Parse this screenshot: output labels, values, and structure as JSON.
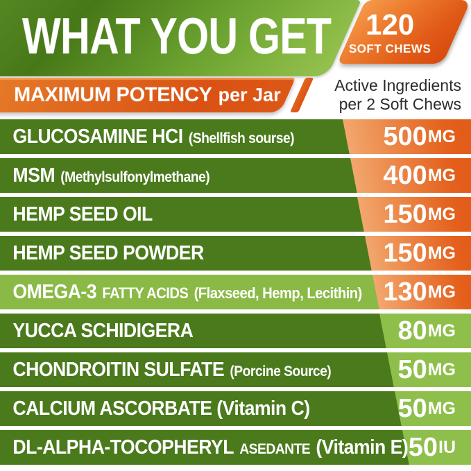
{
  "header": {
    "title": "WHAT YOU GET",
    "badge": {
      "count": "120",
      "label": "SOFT CHEWS"
    }
  },
  "subheader": {
    "potency_strong": "MAXIMUM POTENCY",
    "potency_rest": "per Jar",
    "active_line1": "Active Ingredients",
    "active_line2": "per 2 Soft Chews"
  },
  "ingredients": [
    {
      "segments": [
        {
          "text": "GLUCOSAMINE HCI",
          "size": "lg"
        },
        {
          "text": "(Shellfish sourse)",
          "size": "sm"
        }
      ],
      "amount": "500",
      "unit": "MG",
      "row_style": "dark",
      "amount_style": "orange"
    },
    {
      "segments": [
        {
          "text": "MSM",
          "size": "lg"
        },
        {
          "text": "(Methylsulfonylmethane)",
          "size": "sm"
        }
      ],
      "amount": "400",
      "unit": "MG",
      "row_style": "dark",
      "amount_style": "orange"
    },
    {
      "segments": [
        {
          "text": "HEMP SEED OIL",
          "size": "lg"
        }
      ],
      "amount": "150",
      "unit": "MG",
      "row_style": "dark",
      "amount_style": "orange"
    },
    {
      "segments": [
        {
          "text": "HEMP SEED POWDER",
          "size": "lg"
        }
      ],
      "amount": "150",
      "unit": "MG",
      "row_style": "dark",
      "amount_style": "orange"
    },
    {
      "segments": [
        {
          "text": "OMEGA-3",
          "size": "lg"
        },
        {
          "text": "FATTY ACIDS",
          "size": "md"
        },
        {
          "text": "(Flaxseed, Hemp, Lecithin)",
          "size": "md"
        }
      ],
      "amount": "130",
      "unit": "MG",
      "row_style": "light",
      "amount_style": "orange"
    },
    {
      "segments": [
        {
          "text": "YUCCA SCHIDIGERA",
          "size": "lg"
        }
      ],
      "amount": "80",
      "unit": "MG",
      "row_style": "dark",
      "amount_style": "green"
    },
    {
      "segments": [
        {
          "text": "CHONDROITIN SULFATE",
          "size": "lg"
        },
        {
          "text": "(Porcine Source)",
          "size": "sm"
        }
      ],
      "amount": "50",
      "unit": "MG",
      "row_style": "dark",
      "amount_style": "green"
    },
    {
      "segments": [
        {
          "text": "CALCIUM ASCORBATE (Vitamin C)",
          "size": "lg"
        }
      ],
      "amount": "50",
      "unit": "MG",
      "row_style": "dark",
      "amount_style": "green"
    },
    {
      "segments": [
        {
          "text": "DL-ALPHA-TOCOPHERYL",
          "size": "lg"
        },
        {
          "text": "ASEDANTE",
          "size": "sm"
        },
        {
          "text": "(Vitamin E)",
          "size": "lg"
        }
      ],
      "amount": "50",
      "unit": "IU",
      "row_style": "dark",
      "amount_style": "green"
    }
  ],
  "colors": {
    "green_dark": "#4a7a1c",
    "green_light": "#8ab945",
    "green_wedge": "#8fbf4b",
    "orange": "#de5014",
    "orange_light": "#f2a76d",
    "text_dark": "#2b2b2b",
    "white": "#ffffff"
  }
}
